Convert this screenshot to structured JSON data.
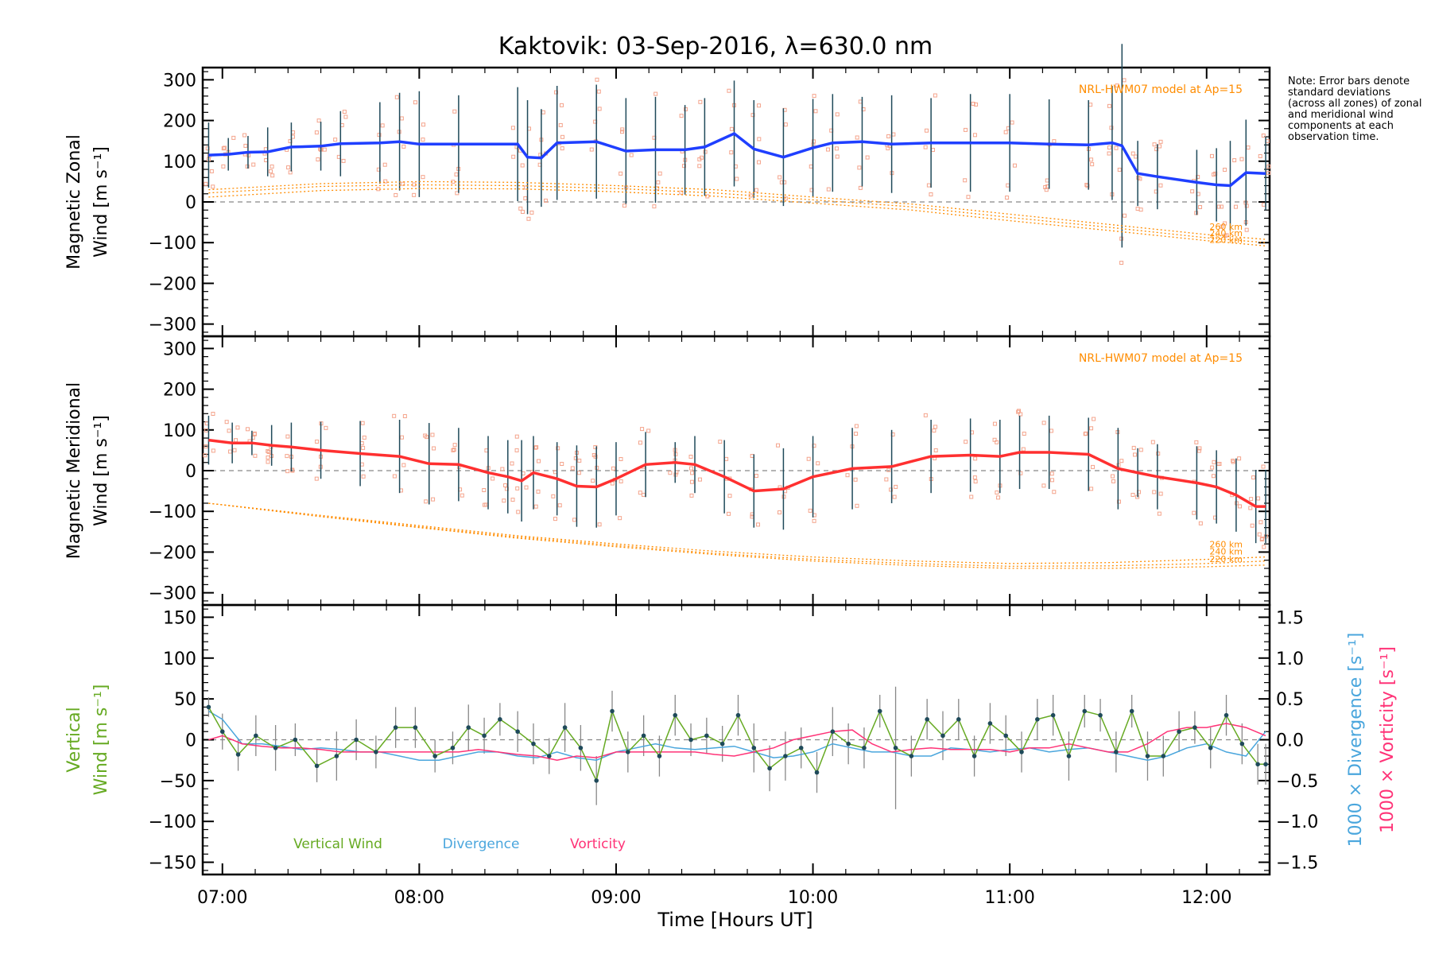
{
  "title": "Kaktovik: 03-Sep-2016, λ=630.0 nm",
  "note": "Note: Error bars denote standard deviations (across all zones) of zonal and meridional wind components at each observation time.",
  "colors": {
    "zonal": "#1f3fff",
    "meridional": "#ff3030",
    "model": "#ff8c00",
    "zone_points": "#f4a48c",
    "error_bars": "#1f4a5a",
    "vertical": "#66aa22",
    "divergence": "#4aa6dd",
    "vorticity": "#ff3377",
    "zero_line": "#888888"
  },
  "chart_data": [
    {
      "type": "line",
      "panel": "zonal",
      "ylabel_line1": "Magnetic Zonal",
      "ylabel_line2": "Wind [m s⁻¹]",
      "ylim": [
        -330,
        330
      ],
      "yticks": [
        -300,
        -200,
        -100,
        0,
        100,
        200,
        300
      ],
      "model_label": "NRL-HWM07 model at Ap=15",
      "model_altitudes": [
        "260 km",
        "240 km",
        "220 km"
      ],
      "series": [
        {
          "role": "mean",
          "x": [
            6.93,
            7.03,
            7.13,
            7.23,
            7.35,
            7.5,
            7.6,
            7.8,
            7.9,
            8.0,
            8.2,
            8.5,
            8.55,
            8.62,
            8.7,
            8.9,
            9.05,
            9.2,
            9.35,
            9.45,
            9.6,
            9.7,
            9.85,
            10.0,
            10.1,
            10.25,
            10.4,
            10.6,
            10.8,
            11.0,
            11.2,
            11.4,
            11.52,
            11.57,
            11.65,
            11.75,
            11.95,
            12.05,
            12.12,
            12.2,
            12.3
          ],
          "y": [
            115,
            117,
            122,
            123,
            135,
            137,
            143,
            145,
            148,
            142,
            142,
            142,
            110,
            108,
            145,
            148,
            125,
            128,
            128,
            135,
            168,
            130,
            110,
            133,
            145,
            148,
            142,
            145,
            145,
            145,
            142,
            140,
            145,
            138,
            70,
            62,
            48,
            42,
            40,
            72,
            70
          ],
          "err": [
            80,
            40,
            40,
            60,
            60,
            60,
            80,
            100,
            120,
            130,
            120,
            140,
            140,
            120,
            140,
            140,
            130,
            130,
            110,
            120,
            130,
            120,
            120,
            120,
            120,
            110,
            120,
            110,
            120,
            120,
            110,
            110,
            140,
            250,
            80,
            80,
            80,
            90,
            110,
            130,
            90
          ]
        },
        {
          "role": "model-260km",
          "x": [
            6.93,
            7.5,
            8.0,
            8.5,
            9.0,
            9.5,
            10.0,
            10.5,
            11.0,
            11.5,
            12.0,
            12.3
          ],
          "y": [
            30,
            45,
            50,
            48,
            40,
            30,
            12,
            -5,
            -30,
            -55,
            -80,
            -92
          ]
        },
        {
          "role": "model-240km",
          "x": [
            6.93,
            7.5,
            8.0,
            8.5,
            9.0,
            9.5,
            10.0,
            10.5,
            11.0,
            11.5,
            12.0,
            12.3
          ],
          "y": [
            22,
            38,
            42,
            40,
            33,
            22,
            5,
            -12,
            -38,
            -62,
            -88,
            -100
          ]
        },
        {
          "role": "model-220km",
          "x": [
            6.93,
            7.5,
            8.0,
            8.5,
            9.0,
            9.5,
            10.0,
            10.5,
            11.0,
            11.5,
            12.0,
            12.3
          ],
          "y": [
            12,
            28,
            33,
            32,
            25,
            14,
            -3,
            -20,
            -46,
            -70,
            -95,
            -108
          ]
        }
      ]
    },
    {
      "type": "line",
      "panel": "meridional",
      "ylabel_line1": "Magnetic Meridional",
      "ylabel_line2": "Wind [m s⁻¹]",
      "ylim": [
        -330,
        330
      ],
      "yticks": [
        -300,
        -200,
        -100,
        0,
        100,
        200,
        300
      ],
      "model_label": "NRL-HWM07 model at Ap=15",
      "model_altitudes": [
        "260 km",
        "240 km",
        "220 km"
      ],
      "series": [
        {
          "role": "mean",
          "x": [
            6.93,
            7.05,
            7.15,
            7.25,
            7.35,
            7.5,
            7.7,
            7.9,
            8.05,
            8.2,
            8.35,
            8.45,
            8.52,
            8.58,
            8.7,
            8.8,
            8.9,
            9.0,
            9.15,
            9.3,
            9.4,
            9.55,
            9.7,
            9.85,
            10.0,
            10.2,
            10.4,
            10.6,
            10.8,
            10.95,
            11.05,
            11.2,
            11.4,
            11.55,
            11.65,
            11.75,
            11.95,
            12.05,
            12.15,
            12.25,
            12.3
          ],
          "y": [
            75,
            68,
            68,
            62,
            58,
            50,
            42,
            35,
            17,
            15,
            -5,
            -15,
            -25,
            -5,
            -20,
            -38,
            -40,
            -20,
            15,
            20,
            15,
            -15,
            -50,
            -45,
            -15,
            5,
            10,
            35,
            38,
            35,
            45,
            45,
            40,
            5,
            -5,
            -15,
            -30,
            -40,
            -60,
            -88,
            -88
          ],
          "err": [
            60,
            50,
            30,
            50,
            60,
            70,
            80,
            90,
            100,
            90,
            90,
            90,
            100,
            90,
            90,
            100,
            100,
            90,
            80,
            50,
            70,
            90,
            90,
            100,
            100,
            100,
            90,
            90,
            90,
            90,
            90,
            90,
            90,
            100,
            60,
            80,
            90,
            90,
            90,
            90,
            90
          ]
        },
        {
          "role": "model-260km",
          "x": [
            6.93,
            7.5,
            8.0,
            8.5,
            9.0,
            9.5,
            10.0,
            10.5,
            11.0,
            11.5,
            12.0,
            12.3
          ],
          "y": [
            -80,
            -110,
            -135,
            -160,
            -180,
            -198,
            -212,
            -222,
            -228,
            -226,
            -218,
            -212
          ]
        },
        {
          "role": "model-240km",
          "x": [
            6.93,
            7.5,
            8.0,
            8.5,
            9.0,
            9.5,
            10.0,
            10.5,
            11.0,
            11.5,
            12.0,
            12.3
          ],
          "y": [
            -80,
            -112,
            -138,
            -163,
            -184,
            -203,
            -218,
            -228,
            -235,
            -234,
            -228,
            -222
          ]
        },
        {
          "role": "model-220km",
          "x": [
            6.93,
            7.5,
            8.0,
            8.5,
            9.0,
            9.5,
            10.0,
            10.5,
            11.0,
            11.5,
            12.0,
            12.3
          ],
          "y": [
            -80,
            -113,
            -140,
            -166,
            -187,
            -206,
            -222,
            -233,
            -240,
            -240,
            -236,
            -232
          ]
        }
      ]
    },
    {
      "type": "line",
      "panel": "vertical",
      "ylabel_line1": "Vertical",
      "ylabel_line2": "Wind [m s⁻¹]",
      "ylim": [
        -165,
        165
      ],
      "yticks": [
        -150,
        -100,
        -50,
        0,
        50,
        100,
        150
      ],
      "right_axis_divergence_label": "1000 × Divergence [s⁻¹]",
      "right_axis_vorticity_label": "1000 × Vorticity [s⁻¹]",
      "right_ylim": [
        -1.65,
        1.65
      ],
      "right_yticks": [
        -1.5,
        -1.0,
        -0.5,
        0.0,
        0.5,
        1.0,
        1.5
      ],
      "right_ytick_labels": [
        "−1.5",
        "−1.0",
        "−0.5",
        "0.0",
        "0.5",
        "1.0",
        "1.5"
      ],
      "legend": [
        "Vertical Wind",
        "Divergence",
        "Vorticity"
      ],
      "series": [
        {
          "role": "vertical-wind",
          "x": [
            6.93,
            7.0,
            7.08,
            7.17,
            7.27,
            7.37,
            7.48,
            7.58,
            7.68,
            7.78,
            7.88,
            7.98,
            8.08,
            8.17,
            8.25,
            8.33,
            8.41,
            8.5,
            8.58,
            8.66,
            8.74,
            8.82,
            8.9,
            8.98,
            9.06,
            9.14,
            9.22,
            9.3,
            9.38,
            9.46,
            9.54,
            9.62,
            9.7,
            9.78,
            9.86,
            9.94,
            10.02,
            10.1,
            10.18,
            10.26,
            10.34,
            10.42,
            10.5,
            10.58,
            10.66,
            10.74,
            10.82,
            10.9,
            10.98,
            11.06,
            11.14,
            11.22,
            11.3,
            11.38,
            11.46,
            11.54,
            11.62,
            11.7,
            11.78,
            11.86,
            11.94,
            12.02,
            12.1,
            12.18,
            12.26,
            12.3
          ],
          "y": [
            40,
            10,
            -18,
            5,
            -10,
            0,
            -32,
            -20,
            0,
            -15,
            15,
            15,
            -20,
            -10,
            15,
            5,
            25,
            10,
            -5,
            -20,
            15,
            -10,
            -50,
            35,
            -15,
            5,
            -20,
            30,
            0,
            5,
            -5,
            30,
            -10,
            -35,
            -20,
            -10,
            -40,
            10,
            -5,
            -10,
            35,
            -10,
            -20,
            25,
            5,
            25,
            -20,
            20,
            5,
            -15,
            25,
            30,
            -20,
            35,
            30,
            -15,
            35,
            -20,
            -20,
            10,
            15,
            -10,
            30,
            -5,
            -30,
            -30
          ],
          "err": [
            12,
            22,
            20,
            25,
            28,
            20,
            20,
            30,
            25,
            20,
            25,
            25,
            20,
            20,
            28,
            22,
            20,
            25,
            25,
            22,
            30,
            28,
            30,
            25,
            25,
            25,
            25,
            25,
            20,
            22,
            22,
            25,
            30,
            28,
            30,
            25,
            25,
            30,
            25,
            25,
            20,
            75,
            25,
            25,
            30,
            25,
            25,
            25,
            25,
            25,
            25,
            25,
            30,
            20,
            20,
            25,
            20,
            30,
            25,
            25,
            20,
            25,
            25,
            25,
            25,
            25
          ]
        },
        {
          "role": "divergence",
          "x": [
            6.93,
            7.0,
            7.1,
            7.2,
            7.3,
            7.4,
            7.5,
            7.6,
            7.7,
            7.8,
            7.9,
            8.0,
            8.1,
            8.2,
            8.3,
            8.4,
            8.5,
            8.6,
            8.7,
            8.8,
            8.9,
            9.0,
            9.1,
            9.2,
            9.3,
            9.4,
            9.5,
            9.6,
            9.7,
            9.8,
            9.9,
            10.0,
            10.1,
            10.2,
            10.3,
            10.4,
            10.5,
            10.6,
            10.7,
            10.8,
            10.9,
            11.0,
            11.1,
            11.2,
            11.3,
            11.4,
            11.5,
            11.6,
            11.7,
            11.8,
            11.9,
            12.0,
            12.1,
            12.2,
            12.3
          ],
          "y": [
            0.35,
            0.25,
            -0.05,
            -0.05,
            -0.08,
            -0.12,
            -0.1,
            -0.12,
            -0.15,
            -0.15,
            -0.2,
            -0.25,
            -0.25,
            -0.2,
            -0.15,
            -0.15,
            -0.2,
            -0.22,
            -0.15,
            -0.22,
            -0.25,
            -0.15,
            -0.1,
            -0.05,
            -0.1,
            -0.12,
            -0.1,
            -0.08,
            -0.15,
            -0.22,
            -0.2,
            -0.15,
            -0.05,
            -0.1,
            -0.15,
            -0.15,
            -0.2,
            -0.2,
            -0.1,
            -0.12,
            -0.15,
            -0.12,
            -0.1,
            -0.15,
            -0.12,
            -0.1,
            -0.15,
            -0.2,
            -0.25,
            -0.2,
            -0.1,
            -0.05,
            -0.15,
            -0.2,
            0.1
          ]
        },
        {
          "role": "vorticity",
          "x": [
            6.93,
            7.0,
            7.1,
            7.2,
            7.3,
            7.4,
            7.5,
            7.6,
            7.7,
            7.8,
            7.9,
            8.0,
            8.1,
            8.2,
            8.3,
            8.4,
            8.5,
            8.6,
            8.7,
            8.8,
            8.9,
            9.0,
            9.1,
            9.2,
            9.3,
            9.4,
            9.5,
            9.6,
            9.7,
            9.8,
            9.9,
            10.0,
            10.1,
            10.2,
            10.3,
            10.4,
            10.5,
            10.6,
            10.7,
            10.8,
            10.9,
            11.0,
            11.1,
            11.2,
            11.3,
            11.4,
            11.5,
            11.6,
            11.7,
            11.8,
            11.9,
            12.0,
            12.1,
            12.2,
            12.3
          ],
          "y": [
            0.0,
            0.05,
            -0.05,
            -0.08,
            -0.1,
            -0.1,
            -0.12,
            -0.15,
            -0.15,
            -0.15,
            -0.15,
            -0.15,
            -0.15,
            -0.15,
            -0.12,
            -0.15,
            -0.18,
            -0.2,
            -0.25,
            -0.2,
            -0.22,
            -0.15,
            -0.15,
            -0.15,
            -0.15,
            -0.15,
            -0.18,
            -0.2,
            -0.15,
            -0.1,
            0.0,
            0.05,
            0.1,
            0.12,
            -0.05,
            -0.15,
            -0.12,
            -0.1,
            -0.12,
            -0.12,
            -0.12,
            -0.15,
            -0.1,
            -0.1,
            -0.05,
            -0.1,
            -0.15,
            -0.15,
            -0.05,
            0.1,
            0.15,
            0.15,
            0.2,
            0.15,
            0.05
          ]
        }
      ]
    }
  ],
  "xaxis": {
    "label": "Time [Hours UT]",
    "xlim": [
      6.9,
      12.32
    ],
    "ticks": [
      7,
      8,
      9,
      10,
      11,
      12
    ],
    "tick_labels": [
      "07:00",
      "08:00",
      "09:00",
      "10:00",
      "11:00",
      "12:00"
    ]
  }
}
